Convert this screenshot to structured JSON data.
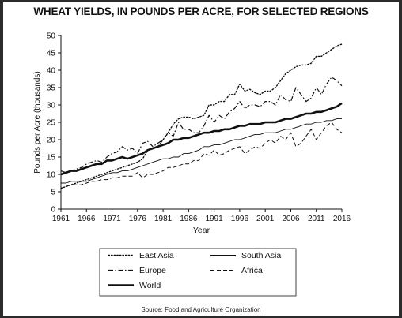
{
  "page": {
    "background": "#2b2b2b",
    "panel": "#ffffff"
  },
  "chart_data": {
    "type": "line",
    "title": "WHEAT YIELDS, IN POUNDS PER ACRE, FOR SELECTED REGIONS",
    "xlabel": "Year",
    "ylabel": "Pounds per Acre (thousands)",
    "xlim": [
      1961,
      2016
    ],
    "ylim": [
      0,
      50
    ],
    "xticks": [
      1961,
      1966,
      1971,
      1976,
      1981,
      1986,
      1991,
      1996,
      2001,
      2006,
      2011,
      2016
    ],
    "yticks": [
      0,
      5,
      10,
      15,
      20,
      25,
      30,
      35,
      40,
      45,
      50
    ],
    "grid": false,
    "legend": "bottom",
    "source": "Source: Food and Agriculture Organization",
    "x": [
      1961,
      1962,
      1963,
      1964,
      1965,
      1966,
      1967,
      1968,
      1969,
      1970,
      1971,
      1972,
      1973,
      1974,
      1975,
      1976,
      1977,
      1978,
      1979,
      1980,
      1981,
      1982,
      1983,
      1984,
      1985,
      1986,
      1987,
      1988,
      1989,
      1990,
      1991,
      1992,
      1993,
      1994,
      1995,
      1996,
      1997,
      1998,
      1999,
      2000,
      2001,
      2002,
      2003,
      2004,
      2005,
      2006,
      2007,
      2008,
      2009,
      2010,
      2011,
      2012,
      2013,
      2014,
      2015,
      2016
    ],
    "series": [
      {
        "name": "East Asia",
        "style": "dotted",
        "values": [
          6,
          6.5,
          7,
          7.5,
          8,
          8.5,
          9,
          9.5,
          10,
          10.5,
          11,
          11.5,
          12,
          12.5,
          13,
          13.5,
          14.5,
          17,
          17.5,
          18,
          20,
          22,
          24.5,
          26,
          26.5,
          26.5,
          26,
          26.5,
          27,
          30,
          30,
          31,
          31,
          33,
          33,
          36,
          34,
          34.5,
          33.5,
          33,
          34,
          34,
          35,
          37,
          39,
          40,
          41,
          41.5,
          41.5,
          42,
          44,
          44,
          45,
          46,
          47,
          47.5
        ]
      },
      {
        "name": "Europe",
        "style": "dashdot",
        "values": [
          11,
          10.5,
          11,
          11.5,
          12,
          13,
          13.5,
          14,
          13.5,
          15,
          16,
          16.5,
          18,
          17,
          17.5,
          16,
          19,
          19.5,
          18,
          19,
          20,
          22,
          21,
          25,
          23,
          23,
          22,
          22,
          24,
          27,
          25,
          27,
          26,
          28,
          29,
          31,
          29,
          30,
          30,
          29.5,
          31,
          31,
          30,
          33,
          31.5,
          31,
          35,
          33,
          31,
          32,
          35,
          33,
          36,
          38,
          37,
          35.5
        ]
      },
      {
        "name": "South Asia",
        "style": "solid-thin",
        "values": [
          7.5,
          7.5,
          8,
          8,
          8,
          8,
          8.5,
          9,
          9.5,
          10,
          10.5,
          10.5,
          11,
          11,
          11.5,
          12,
          12.5,
          13,
          13.5,
          14,
          14.5,
          14.5,
          15,
          15,
          16,
          16,
          16.5,
          17,
          18,
          18,
          18.5,
          18.5,
          19,
          19.5,
          20,
          20,
          20.5,
          21,
          21.5,
          21.5,
          22,
          22,
          22,
          22.5,
          23,
          23,
          23.5,
          24,
          24.5,
          24.5,
          25,
          25,
          25.5,
          25.5,
          26,
          26
        ]
      },
      {
        "name": "Africa",
        "style": "dashed",
        "values": [
          6,
          6.5,
          7,
          7,
          7,
          7.5,
          8,
          8,
          8.5,
          8.5,
          9,
          9,
          9.5,
          9.5,
          9.5,
          10.5,
          9,
          10,
          10,
          10.5,
          11,
          12,
          12,
          12.5,
          13,
          13,
          14,
          14,
          16,
          15.5,
          17,
          15.5,
          16,
          17,
          17.5,
          18,
          16,
          17,
          18,
          17.5,
          19,
          20,
          19,
          21,
          20,
          22,
          18,
          19,
          21,
          23,
          20,
          22,
          24,
          25,
          23,
          22
        ]
      },
      {
        "name": "World",
        "style": "solid-thick",
        "values": [
          10,
          10.5,
          11,
          11,
          11.5,
          12,
          12.5,
          13,
          13,
          14,
          14,
          14.5,
          15,
          14.5,
          15,
          15.5,
          16,
          17,
          17.5,
          18,
          18.5,
          19,
          20,
          20,
          20.5,
          20.5,
          21,
          21.5,
          22,
          22,
          22.5,
          22.5,
          23,
          23,
          23.5,
          24,
          24,
          24.5,
          24.5,
          24.5,
          25,
          25,
          25,
          25.5,
          26,
          26,
          26.5,
          27,
          27.5,
          27.5,
          28,
          28,
          28.5,
          29,
          29.5,
          30.5
        ]
      }
    ]
  }
}
